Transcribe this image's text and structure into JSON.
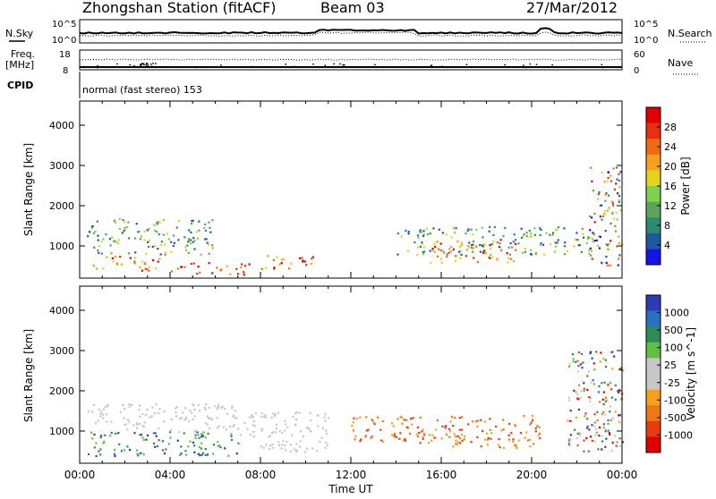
{
  "header": {
    "station": "Zhongshan Station (fitACF)",
    "beam": "Beam 03",
    "date": "27/Mar/2012"
  },
  "top_panels": {
    "nsky_label": "N.Sky",
    "nsky_ticks": [
      "10^5",
      "10^0"
    ],
    "nsearch_label": "N.Search",
    "nsearch_ticks": [
      "10^5",
      "10^0"
    ],
    "freq_label": "Freq.",
    "freq_unit": "[MHz]",
    "freq_ticks": [
      "18",
      "8"
    ],
    "nave_label": "Nave",
    "nave_ticks": [
      "60",
      "0"
    ],
    "cpid_label": "CPID",
    "cpid_value": "normal (fast stereo) 153"
  },
  "chart_data": [
    {
      "type": "heatmap",
      "title": "",
      "panel": "power",
      "ylabel": "Slant Range [km]",
      "xlabel": "",
      "ylim": [
        200,
        4600
      ],
      "xlim_hours": [
        0,
        24
      ],
      "yticks": [
        "1000",
        "2000",
        "3000",
        "4000"
      ],
      "colorbar": {
        "label": "Power [dB]",
        "ticks": [
          "4",
          "8",
          "12",
          "16",
          "20",
          "24",
          "28"
        ],
        "range": [
          0,
          32
        ],
        "colors": [
          "#1414e6",
          "#1e5aa0",
          "#2e8b6e",
          "#5fa35a",
          "#7fd14d",
          "#e6d21e",
          "#f5a01e",
          "#f06a14",
          "#e83010",
          "#e00000"
        ]
      },
      "scatter_regions": [
        {
          "x": [
            0.5,
            3.5
          ],
          "y": [
            400,
            800
          ],
          "level": "high"
        },
        {
          "x": [
            4.0,
            7.5
          ],
          "y": [
            300,
            600
          ],
          "level": "high"
        },
        {
          "x": [
            8.0,
            10.5
          ],
          "y": [
            450,
            800
          ],
          "level": "high"
        },
        {
          "x": [
            15.5,
            19.5
          ],
          "y": [
            600,
            1200
          ],
          "level": "high"
        },
        {
          "x": [
            0.3,
            6.0
          ],
          "y": [
            800,
            1700
          ],
          "level": "mid"
        },
        {
          "x": [
            14.0,
            22.5
          ],
          "y": [
            800,
            1500
          ],
          "level": "mid"
        },
        {
          "x": [
            22.5,
            24.0
          ],
          "y": [
            500,
            3000
          ],
          "level": "mixed"
        }
      ]
    },
    {
      "type": "heatmap",
      "title": "",
      "panel": "velocity",
      "ylabel": "Slant Range [km]",
      "xlabel": "Time UT",
      "ylim": [
        200,
        4600
      ],
      "xlim_hours": [
        0,
        24
      ],
      "xticks": [
        "00:00",
        "04:00",
        "08:00",
        "12:00",
        "16:00",
        "20:00",
        "00:00"
      ],
      "yticks": [
        "1000",
        "2000",
        "3000",
        "4000"
      ],
      "colorbar": {
        "label": "Velocity [m s^-1]",
        "ticks": [
          "1000",
          "500",
          "100",
          "25",
          "-25",
          "-100",
          "-500",
          "-1000"
        ],
        "colors": [
          "#2a3cb8",
          "#2870c0",
          "#2e8b57",
          "#5fc040",
          "#c8c8c8",
          "#c8c8c8",
          "#f5a01e",
          "#f07814",
          "#e83c10",
          "#e00000"
        ]
      },
      "scatter_regions": [
        {
          "x": [
            0.3,
            7.0
          ],
          "y": [
            400,
            1000
          ],
          "level": "toward"
        },
        {
          "x": [
            0.3,
            7.0
          ],
          "y": [
            1000,
            1700
          ],
          "level": "zero"
        },
        {
          "x": [
            7.0,
            11.0
          ],
          "y": [
            500,
            1500
          ],
          "level": "zero"
        },
        {
          "x": [
            12.0,
            16.0
          ],
          "y": [
            700,
            1400
          ],
          "level": "away"
        },
        {
          "x": [
            16.0,
            20.5
          ],
          "y": [
            600,
            1400
          ],
          "level": "away"
        },
        {
          "x": [
            21.5,
            24.0
          ],
          "y": [
            500,
            3000
          ],
          "level": "mixed"
        }
      ]
    }
  ]
}
